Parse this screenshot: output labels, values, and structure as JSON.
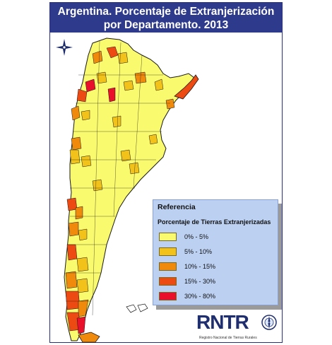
{
  "title": {
    "line1": "Argentina. Porcentaje de Extranjerización",
    "line2": "por Departamento. 2013"
  },
  "legend": {
    "heading": "Referencia",
    "subheading": "Porcentaje de Tierras Extranjerizadas",
    "items": [
      {
        "label": "0% - 5%",
        "color": "#fafa6e"
      },
      {
        "label": "5% - 10%",
        "color": "#f2c21a"
      },
      {
        "label": "10% - 15%",
        "color": "#f08a0c"
      },
      {
        "label": "15% - 30%",
        "color": "#ec4a12"
      },
      {
        "label": "30% - 80%",
        "color": "#e8102a"
      }
    ]
  },
  "logo": {
    "acronym": "RNTR",
    "full_name": "Registro Nacional de Tierras Rurales"
  },
  "compass_icon": "compass-rose-icon",
  "colors": {
    "title_bar": "#2e3a8c",
    "legend_bg": "#bcd0f2",
    "boundary": "#1a1a1a"
  }
}
